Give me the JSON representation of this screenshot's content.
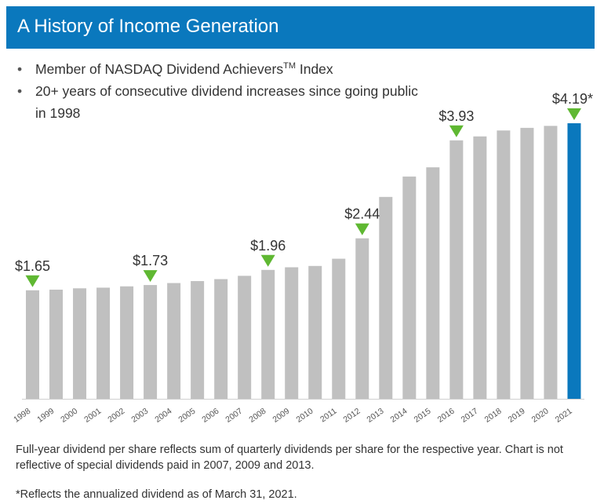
{
  "header": {
    "title": "A History of Income Generation"
  },
  "bullets": [
    {
      "text": "Member of NASDAQ Dividend Achievers",
      "sup": "TM",
      "text_after": " Index"
    },
    {
      "text": "20+ years of consecutive dividend increases since going public in 1998"
    }
  ],
  "chart_data": {
    "type": "bar",
    "categories": [
      "1998",
      "1999",
      "2000",
      "2001",
      "2002",
      "2003",
      "2004",
      "2005",
      "2006",
      "2007",
      "2008",
      "2009",
      "2010",
      "2011",
      "2012",
      "2013",
      "2014",
      "2015",
      "2016",
      "2017",
      "2018",
      "2019",
      "2020",
      "2021"
    ],
    "values": [
      1.65,
      1.66,
      1.68,
      1.69,
      1.71,
      1.73,
      1.76,
      1.79,
      1.82,
      1.87,
      1.96,
      2.0,
      2.02,
      2.13,
      2.44,
      3.07,
      3.38,
      3.52,
      3.93,
      3.99,
      4.08,
      4.12,
      4.15,
      4.19
    ],
    "ylim": [
      0,
      4.19
    ],
    "colors": {
      "default": "#c0c0c0",
      "highlight": "#0a78bd",
      "marker": "#5fb832"
    },
    "highlight_index": 23,
    "annotations": [
      {
        "index": 0,
        "label": "$1.65"
      },
      {
        "index": 5,
        "label": "$1.73"
      },
      {
        "index": 10,
        "label": "$1.96"
      },
      {
        "index": 14,
        "label": "$2.44"
      },
      {
        "index": 18,
        "label": "$3.93"
      },
      {
        "index": 23,
        "label": "$4.19*"
      }
    ],
    "grid": false,
    "legend": "none"
  },
  "footnotes": {
    "main": "Full-year dividend per share reflects sum of quarterly dividends per share for the respective year. Chart is not reflective of special dividends paid in 2007, 2009 and 2013.",
    "asterisk": "*Reflects the annualized dividend as of March 31, 2021."
  }
}
